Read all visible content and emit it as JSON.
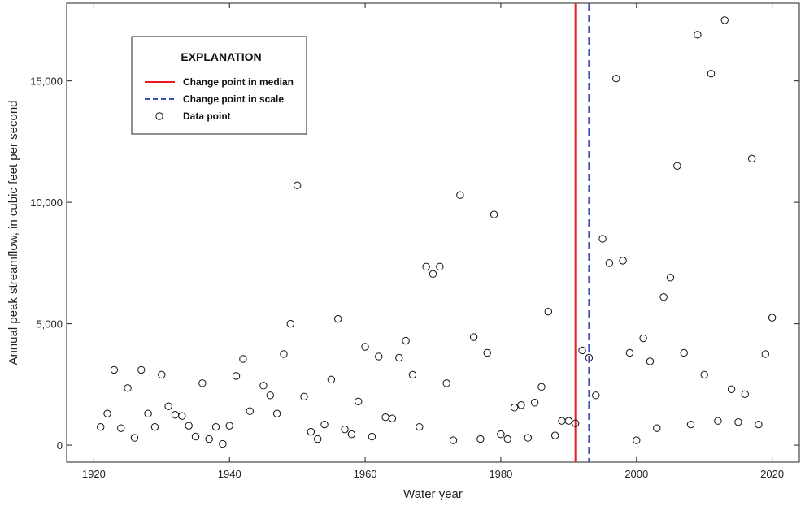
{
  "chart_data": {
    "type": "scatter",
    "xlabel": "Water year",
    "ylabel": "Annual peak streamflow, in cubic feet per second",
    "xlim": [
      1916,
      2024
    ],
    "ylim": [
      -700,
      18200
    ],
    "x_ticks": [
      1920,
      1940,
      1960,
      1980,
      2000,
      2020
    ],
    "x_tick_labels": [
      "1920",
      "1940",
      "1960",
      "1980",
      "2000",
      "2020"
    ],
    "y_ticks": [
      0,
      5000,
      10000,
      15000
    ],
    "y_tick_labels": [
      "0",
      "5,000",
      "10,000",
      "15,000"
    ],
    "grid": false,
    "legend": {
      "title": "EXPLANATION",
      "position": "top-left",
      "entries": [
        {
          "label": "Change point in median",
          "style": "solid-line",
          "color": "#e8191f"
        },
        {
          "label": "Change point in scale",
          "style": "dashed-line",
          "color": "#3a4fb5"
        },
        {
          "label": "Data point",
          "style": "open-circle",
          "color": "#111111"
        }
      ]
    },
    "change_points": {
      "median": 1991,
      "scale": 1993
    },
    "series": [
      {
        "marker": "open-circle",
        "points": [
          [
            1921,
            750
          ],
          [
            1922,
            1300
          ],
          [
            1923,
            3100
          ],
          [
            1924,
            700
          ],
          [
            1925,
            2350
          ],
          [
            1926,
            300
          ],
          [
            1927,
            3100
          ],
          [
            1928,
            1300
          ],
          [
            1929,
            750
          ],
          [
            1930,
            2900
          ],
          [
            1931,
            1600
          ],
          [
            1932,
            1250
          ],
          [
            1933,
            1200
          ],
          [
            1934,
            800
          ],
          [
            1935,
            350
          ],
          [
            1936,
            2550
          ],
          [
            1937,
            250
          ],
          [
            1938,
            750
          ],
          [
            1939,
            50
          ],
          [
            1940,
            800
          ],
          [
            1941,
            2850
          ],
          [
            1942,
            3550
          ],
          [
            1943,
            1400
          ],
          [
            1945,
            2450
          ],
          [
            1946,
            2050
          ],
          [
            1947,
            1300
          ],
          [
            1948,
            3750
          ],
          [
            1949,
            5000
          ],
          [
            1950,
            10700
          ],
          [
            1951,
            2000
          ],
          [
            1952,
            550
          ],
          [
            1953,
            250
          ],
          [
            1954,
            850
          ],
          [
            1955,
            2700
          ],
          [
            1956,
            5200
          ],
          [
            1957,
            650
          ],
          [
            1958,
            450
          ],
          [
            1959,
            1800
          ],
          [
            1960,
            4050
          ],
          [
            1961,
            350
          ],
          [
            1962,
            3650
          ],
          [
            1963,
            1150
          ],
          [
            1964,
            1100
          ],
          [
            1965,
            3600
          ],
          [
            1966,
            4300
          ],
          [
            1967,
            2900
          ],
          [
            1968,
            750
          ],
          [
            1969,
            7350
          ],
          [
            1970,
            7050
          ],
          [
            1971,
            7350
          ],
          [
            1972,
            2550
          ],
          [
            1973,
            200
          ],
          [
            1974,
            10300
          ],
          [
            1976,
            4450
          ],
          [
            1977,
            250
          ],
          [
            1978,
            3800
          ],
          [
            1979,
            9500
          ],
          [
            1980,
            450
          ],
          [
            1981,
            250
          ],
          [
            1982,
            1550
          ],
          [
            1983,
            1650
          ],
          [
            1984,
            300
          ],
          [
            1985,
            1750
          ],
          [
            1986,
            2400
          ],
          [
            1987,
            5500
          ],
          [
            1988,
            400
          ],
          [
            1989,
            1000
          ],
          [
            1990,
            1000
          ],
          [
            1991,
            900
          ],
          [
            1992,
            3900
          ],
          [
            1993,
            3600
          ],
          [
            1994,
            2050
          ],
          [
            1995,
            8500
          ],
          [
            1996,
            7500
          ],
          [
            1997,
            15100
          ],
          [
            1998,
            7600
          ],
          [
            1999,
            3800
          ],
          [
            2000,
            200
          ],
          [
            2001,
            4400
          ],
          [
            2002,
            3450
          ],
          [
            2003,
            700
          ],
          [
            2004,
            6100
          ],
          [
            2005,
            6900
          ],
          [
            2006,
            11500
          ],
          [
            2007,
            3800
          ],
          [
            2008,
            850
          ],
          [
            2009,
            16900
          ],
          [
            2010,
            2900
          ],
          [
            2011,
            15300
          ],
          [
            2012,
            1000
          ],
          [
            2013,
            17500
          ],
          [
            2014,
            2300
          ],
          [
            2015,
            950
          ],
          [
            2016,
            2100
          ],
          [
            2017,
            11800
          ],
          [
            2018,
            850
          ],
          [
            2019,
            3750
          ],
          [
            2020,
            5250
          ]
        ]
      }
    ]
  }
}
